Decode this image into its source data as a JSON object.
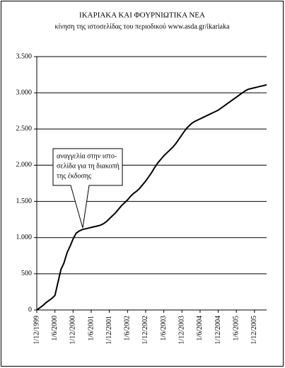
{
  "chart_data": {
    "type": "line",
    "title": "ΙΚΑΡΙΑΚΑ ΚΑΙ ΦΟΥΡΝΙΩΤΙΚΑ ΝΕΑ",
    "subtitle": "κίνηση της ιστοσελίδας του περιοδικού www.asda.gr/ikariaka",
    "annotation": [
      "αναγγελία στην ιστο-",
      "σελίδα για τη διακοπή",
      "της έκδοσης"
    ],
    "x": [
      "1/12/1999",
      "1/1/2000",
      "1/2/2000",
      "1/3/2000",
      "1/4/2000",
      "1/5/2000",
      "1/6/2000",
      "1/7/2000",
      "1/8/2000",
      "1/9/2000",
      "1/10/2000",
      "1/11/2000",
      "1/12/2000",
      "1/1/2001",
      "1/2/2001",
      "1/3/2001",
      "1/4/2001",
      "1/5/2001",
      "1/6/2001",
      "1/7/2001",
      "1/8/2001",
      "1/9/2001",
      "1/10/2001",
      "1/11/2001",
      "1/12/2001",
      "1/1/2002",
      "1/2/2002",
      "1/3/2002",
      "1/4/2002",
      "1/5/2002",
      "1/6/2002",
      "1/7/2002",
      "1/8/2002",
      "1/9/2002",
      "1/10/2002",
      "1/11/2002",
      "1/12/2002",
      "1/1/2003",
      "1/2/2003",
      "1/3/2003",
      "1/4/2003",
      "1/5/2003",
      "1/6/2003",
      "1/7/2003",
      "1/8/2003",
      "1/9/2003",
      "1/10/2003",
      "1/11/2003",
      "1/12/2003",
      "1/1/2004",
      "1/2/2004",
      "1/3/2004",
      "1/4/2004",
      "1/5/2004",
      "1/6/2004",
      "1/7/2004",
      "1/8/2004",
      "1/9/2004",
      "1/10/2004",
      "1/11/2004",
      "1/12/2004",
      "1/1/2005",
      "1/2/2005",
      "1/3/2005",
      "1/4/2005",
      "1/5/2005",
      "1/6/2005",
      "1/7/2005",
      "1/8/2005",
      "1/9/2005",
      "1/10/2005",
      "1/11/2005",
      "1/12/2005",
      "1/1/2006",
      "1/2/2006",
      "1/3/2006",
      "1/4/2006"
    ],
    "series": [
      {
        "color": "#000000",
        "values": [
          0,
          30,
          60,
          100,
          130,
          160,
          200,
          380,
          560,
          650,
          790,
          880,
          980,
          1060,
          1090,
          1110,
          1120,
          1130,
          1140,
          1150,
          1160,
          1170,
          1190,
          1220,
          1260,
          1300,
          1340,
          1390,
          1440,
          1480,
          1520,
          1570,
          1610,
          1640,
          1680,
          1730,
          1780,
          1840,
          1900,
          1970,
          2030,
          2080,
          2130,
          2170,
          2210,
          2250,
          2300,
          2360,
          2420,
          2480,
          2530,
          2570,
          2600,
          2620,
          2640,
          2660,
          2680,
          2700,
          2720,
          2740,
          2760,
          2790,
          2820,
          2850,
          2880,
          2910,
          2940,
          2970,
          3000,
          3030,
          3050,
          3060,
          3070,
          3080,
          3090,
          3100,
          3110
        ]
      }
    ],
    "xlim": [
      "1/12/1999",
      "1/4/2006"
    ],
    "xticks": [
      "1/12/1999",
      "1/6/2000",
      "1/12/2000",
      "1/6/2001",
      "1/12/2001",
      "1/6/2002",
      "1/12/2002",
      "1/6/2003",
      "1/12/2003",
      "1/6/2004",
      "1/12/2004",
      "1/6/2005",
      "1/12/2005"
    ],
    "ylim": [
      0,
      3500
    ],
    "yticks": [
      0,
      500,
      {
        "value": 1000,
        "label": "1.000"
      },
      {
        "value": 1500,
        "label": "1.500"
      },
      {
        "value": 2000,
        "label": "2.000"
      },
      {
        "value": 2500,
        "label": "2.500"
      },
      {
        "value": 3000,
        "label": "3.000"
      },
      {
        "value": 3500,
        "label": "3.500"
      }
    ],
    "grid": true
  }
}
